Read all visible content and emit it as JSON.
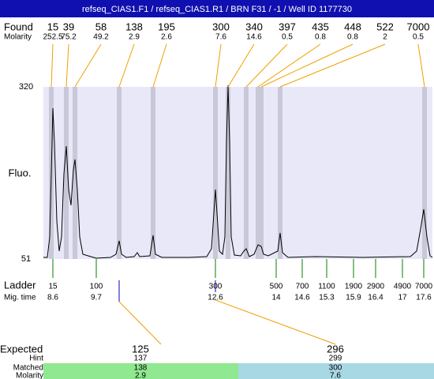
{
  "header": {
    "title": "refseq_CIAS1.F1 / refseq_CIAS1.R1 / BRN F31 / -1 / Well ID 1177730"
  },
  "found": {
    "label": "Found",
    "molarity_label": "Molarity",
    "sizes": [
      15,
      39,
      58,
      138,
      195,
      300,
      340,
      397,
      435,
      448,
      522,
      7000
    ],
    "molarity": [
      252.5,
      75.2,
      49.2,
      2.9,
      2.6,
      7.6,
      14.6,
      0.5,
      0.8,
      0.8,
      2,
      0.5
    ]
  },
  "axis": {
    "top": 320,
    "bottom": 51,
    "label": "Fluo."
  },
  "ladder": {
    "label": "Ladder",
    "time_label": "Mig. time",
    "sizes": [
      15,
      100,
      300,
      500,
      700,
      1100,
      1900,
      2900,
      4900,
      7000
    ],
    "times": [
      8.6,
      9.7,
      12.6,
      14,
      14.6,
      15.3,
      15.9,
      16.4,
      17,
      17.6
    ]
  },
  "expected": {
    "labels": [
      "Expected",
      "Hint",
      "Matched",
      "Molarity"
    ],
    "columns": [
      [
        125,
        137,
        138,
        2.9
      ],
      [
        296,
        299,
        300,
        7.6
      ]
    ]
  }
}
